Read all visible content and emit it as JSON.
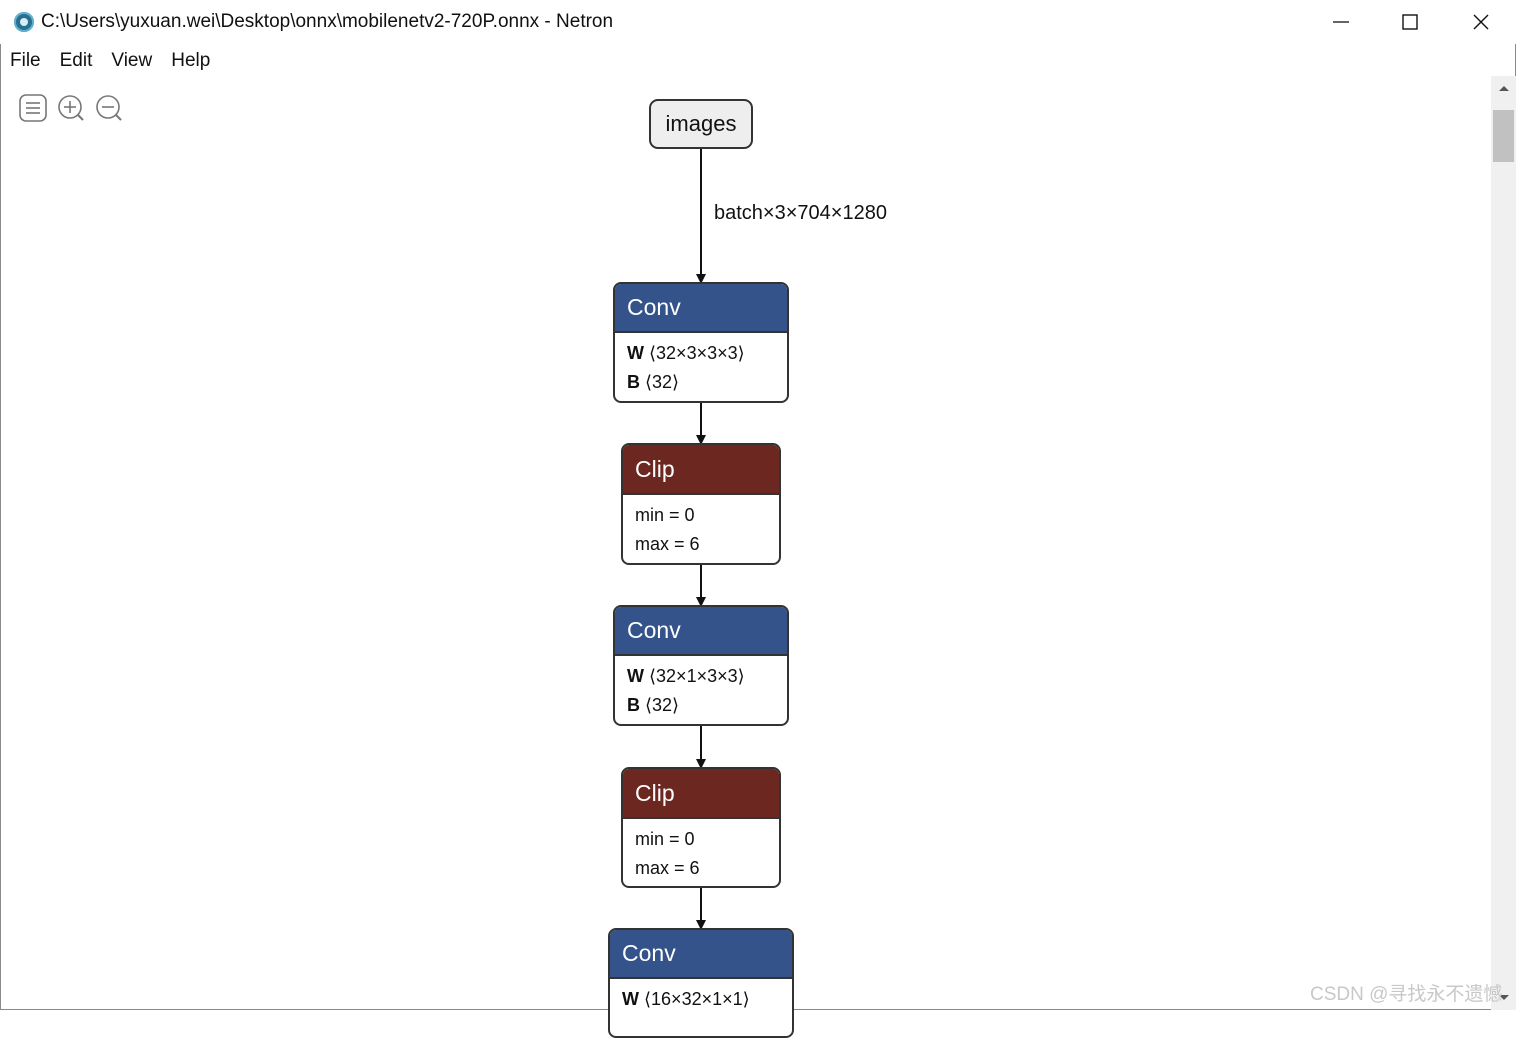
{
  "window": {
    "title": "C:\\Users\\yuxuan.wei\\Desktop\\onnx\\mobilenetv2-720P.onnx - Netron",
    "icon": "netron-app-icon"
  },
  "window_controls": [
    "minimize-icon",
    "maximize-icon",
    "close-icon"
  ],
  "menu": [
    "File",
    "Edit",
    "View",
    "Help"
  ],
  "toolbar": [
    "sidebar-menu-icon",
    "zoom-in-icon",
    "zoom-out-icon"
  ],
  "graph": {
    "input": {
      "label": "images"
    },
    "edge_label": "batch×3×704×1280",
    "nodes": [
      {
        "op": "Conv",
        "attrs": [
          {
            "name": "W",
            "value": "⟨32×3×3×3⟩"
          },
          {
            "name": "B",
            "value": "⟨32⟩"
          }
        ]
      },
      {
        "op": "Clip",
        "attrs": [
          {
            "text": "min = 0"
          },
          {
            "text": "max = 6"
          }
        ]
      },
      {
        "op": "Conv",
        "attrs": [
          {
            "name": "W",
            "value": "⟨32×1×3×3⟩"
          },
          {
            "name": "B",
            "value": "⟨32⟩"
          }
        ]
      },
      {
        "op": "Clip",
        "attrs": [
          {
            "text": "min = 0"
          },
          {
            "text": "max = 6"
          }
        ]
      },
      {
        "op": "Conv",
        "attrs": [
          {
            "name": "W",
            "value": "⟨16×32×1×1⟩"
          }
        ]
      }
    ]
  },
  "colors": {
    "conv_header": "#33538a",
    "clip_header": "#6b2720",
    "input_fill": "#eeeeee"
  },
  "watermark": "CSDN @寻找永不遗憾"
}
